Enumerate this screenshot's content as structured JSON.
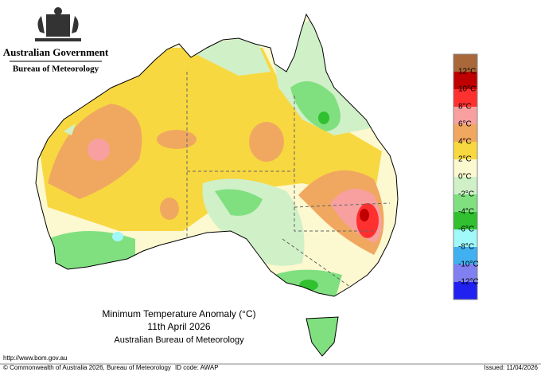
{
  "header": {
    "government": "Australian Government",
    "agency": "Bureau of Meteorology"
  },
  "legend": {
    "colors": [
      "#a8683a",
      "#c00000",
      "#ff3030",
      "#f8a0a0",
      "#f0a860",
      "#f8d840",
      "#fcf8d0",
      "#d0f0c8",
      "#80e080",
      "#30c030",
      "#a0f8f8",
      "#40b0f0",
      "#8080f0",
      "#2020f0"
    ],
    "labels": [
      "12°C",
      "10°C",
      "8°C",
      "6°C",
      "4°C",
      "2°C",
      "0°C",
      "-2°C",
      "-4°C",
      "-6°C",
      "-8°C",
      "-10°C",
      "-12°C"
    ]
  },
  "map_title": {
    "line1": "Minimum Temperature Anomaly (°C)",
    "line2": "11th April 2026",
    "line3": "Australian Bureau of Meteorology"
  },
  "footer": {
    "url": "http://www.bom.gov.au",
    "copyright": "© Commonwealth of Australia 2026, Bureau of Meteorology",
    "id_code": "ID code: AWAP",
    "issued": "Issued: 11/04/2026"
  }
}
